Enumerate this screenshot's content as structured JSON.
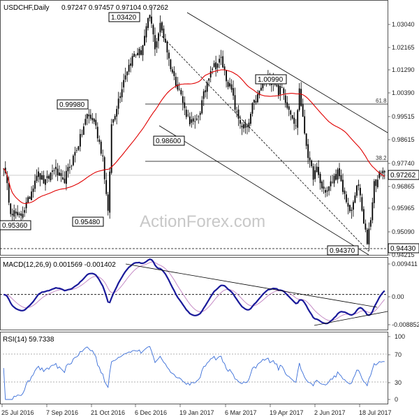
{
  "chart_data": {
    "type": "candlestick",
    "header": {
      "symbol": "USDCHF,Daily",
      "quote": "0.97247 0.97457 0.97104 0.97262"
    },
    "price_axis": {
      "ticks": [
        "1.03040",
        "1.02165",
        "1.01290",
        "1.00390",
        "0.99515",
        "0.98615",
        "0.97740",
        "0.96865",
        "0.95965",
        "0.95090",
        "0.94215"
      ],
      "ylim": [
        0.941,
        1.0372
      ]
    },
    "x_ticks": [
      "25 Jul 2016",
      "7 Sep 2016",
      "21 Oct 2016",
      "6 Dec 2016",
      "19 Jan 2017",
      "6 Mar 2017",
      "19 Apr 2017",
      "2 Jun 2017",
      "18 Jul 2017"
    ],
    "current_price_label": "0.97262",
    "support_label": "0.94430",
    "price_labels": [
      {
        "text": "1.03420",
        "bar": 84,
        "value": 1.0342
      },
      {
        "text": "0.99980",
        "bar": 46,
        "value": 0.9998
      },
      {
        "text": "0.98600",
        "bar": 96,
        "value": 0.986
      },
      {
        "text": "1.00990",
        "bar": 153,
        "value": 1.0099
      },
      {
        "text": "0.95480",
        "bar": 61,
        "value": 0.9548
      },
      {
        "text": "0.95360",
        "bar": 0,
        "value": 0.9536
      },
      {
        "text": "0.94370",
        "bar": 209,
        "value": 0.9437
      }
    ],
    "fib_levels": [
      {
        "label": "61.8",
        "value": 0.9997
      },
      {
        "label": "38.2",
        "value": 0.9775
      }
    ],
    "moving_average": "55-day SMA (red)",
    "close_path": [
      [
        0,
        0.975
      ],
      [
        4,
        0.958
      ],
      [
        9,
        0.955
      ],
      [
        14,
        0.961
      ],
      [
        19,
        0.972
      ],
      [
        24,
        0.968
      ],
      [
        29,
        0.974
      ],
      [
        34,
        0.968
      ],
      [
        39,
        0.976
      ],
      [
        44,
        0.985
      ],
      [
        48,
        0.994
      ],
      [
        52,
        0.992
      ],
      [
        57,
        0.978
      ],
      [
        60,
        0.956
      ],
      [
        62,
        0.99
      ],
      [
        66,
        1.0
      ],
      [
        70,
        1.01
      ],
      [
        75,
        1.017
      ],
      [
        79,
        1.018
      ],
      [
        84,
        1.032
      ],
      [
        87,
        1.02
      ],
      [
        90,
        1.028
      ],
      [
        93,
        1.022
      ],
      [
        95,
        1.015
      ],
      [
        98,
        1.008
      ],
      [
        101,
        1.004
      ],
      [
        104,
        0.996
      ],
      [
        107,
        0.992
      ],
      [
        110,
        0.99
      ],
      [
        113,
        0.996
      ],
      [
        116,
        1.004
      ],
      [
        119,
        1.012
      ],
      [
        122,
        1.013
      ],
      [
        125,
        1.015
      ],
      [
        128,
        1.008
      ],
      [
        131,
        1.003
      ],
      [
        134,
        0.994
      ],
      [
        137,
        0.99
      ],
      [
        140,
        0.988
      ],
      [
        143,
        0.997
      ],
      [
        146,
        1.001
      ],
      [
        149,
        1.006
      ],
      [
        152,
        1.007
      ],
      [
        155,
        1.008
      ],
      [
        158,
        1.003
      ],
      [
        160,
        1.004
      ],
      [
        163,
        0.998
      ],
      [
        166,
        0.994
      ],
      [
        168,
        0.989
      ],
      [
        170,
        1.004
      ],
      [
        172,
        0.992
      ],
      [
        174,
        0.983
      ],
      [
        176,
        0.975
      ],
      [
        178,
        0.971
      ],
      [
        180,
        0.973
      ],
      [
        183,
        0.966
      ],
      [
        186,
        0.965
      ],
      [
        189,
        0.969
      ],
      [
        192,
        0.972
      ],
      [
        195,
        0.965
      ],
      [
        197,
        0.962
      ],
      [
        199,
        0.956
      ],
      [
        201,
        0.96
      ],
      [
        203,
        0.968
      ],
      [
        205,
        0.963
      ],
      [
        207,
        0.952
      ],
      [
        209,
        0.946
      ],
      [
        211,
        0.955
      ],
      [
        213,
        0.968
      ],
      [
        215,
        0.969
      ],
      [
        217,
        0.973
      ],
      [
        219,
        0.9726
      ]
    ],
    "macd": {
      "label": "MACD(12,26,9) 0.001569 -0.001402",
      "ticks": [
        "0.009411",
        "0.00",
        "-0.008852"
      ],
      "ylim": [
        -0.0102,
        0.0107
      ]
    },
    "rsi": {
      "label": "RSI(14) 59.7338",
      "ticks": [
        "100",
        "70",
        "30",
        "0"
      ],
      "ylim": [
        0,
        100
      ]
    },
    "watermark": "ActionForex.com"
  }
}
